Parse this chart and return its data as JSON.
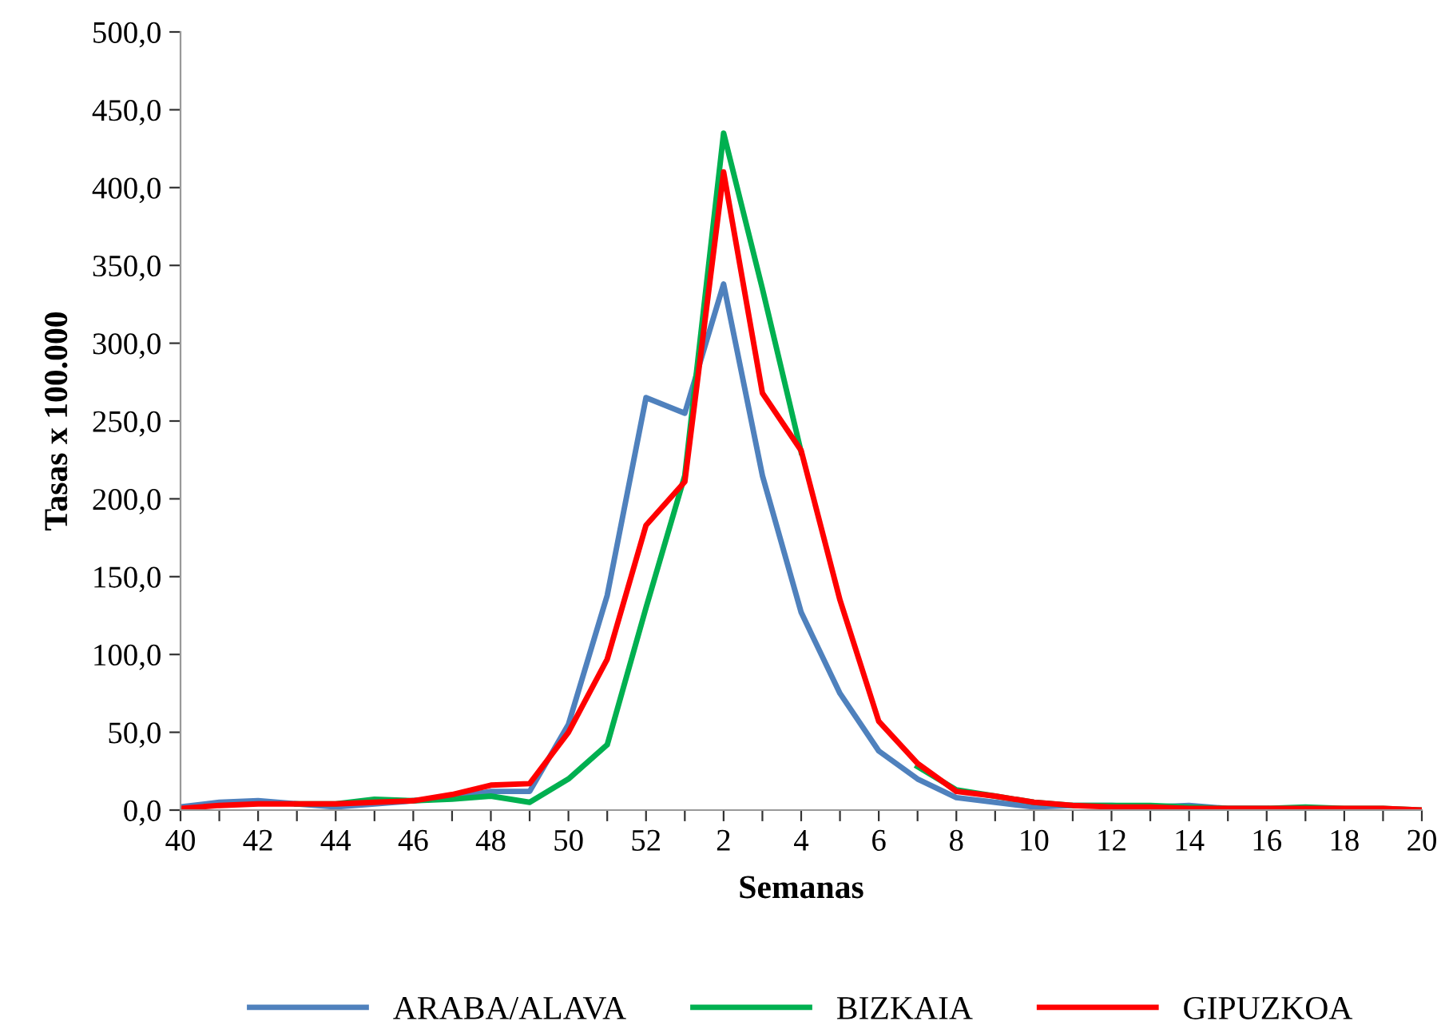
{
  "chart_data": {
    "type": "line",
    "xlabel": "Semanas",
    "ylabel": "Tasas x 100.000",
    "categories": [
      "40",
      null,
      "42",
      null,
      "44",
      null,
      "46",
      null,
      "48",
      null,
      "50",
      null,
      "52",
      null,
      "2",
      null,
      "4",
      null,
      "6",
      null,
      "8",
      null,
      "10",
      null,
      "12",
      null,
      "14",
      null,
      "16",
      null,
      "18",
      null,
      "20"
    ],
    "series": [
      {
        "name": "ARABA/ALAVA",
        "color": "#4f81bd",
        "values": [
          2,
          5,
          6,
          4,
          2,
          4,
          6,
          8,
          12,
          12,
          55,
          138,
          265,
          255,
          338,
          215,
          127,
          75,
          38,
          20,
          8,
          5,
          2,
          3,
          3,
          2,
          3,
          1,
          1,
          null,
          null,
          null,
          null
        ]
      },
      {
        "name": "BIZKAIA",
        "color": "#00b050",
        "values": [
          null,
          null,
          null,
          4,
          4,
          7,
          6,
          7,
          9,
          5,
          20,
          42,
          130,
          215,
          435,
          335,
          230,
          null,
          null,
          28,
          13,
          9,
          5,
          3,
          3,
          3,
          2,
          1,
          1,
          2,
          1,
          1,
          0
        ]
      },
      {
        "name": "GIPUZKOA",
        "color": "#ff0000",
        "values": [
          1,
          3,
          4,
          4,
          4,
          5,
          6,
          10,
          16,
          17,
          50,
          97,
          183,
          211,
          410,
          268,
          231,
          135,
          57,
          30,
          12,
          9,
          5,
          3,
          2,
          2,
          1,
          1,
          1,
          1,
          1,
          1,
          0
        ]
      }
    ],
    "ylim": [
      0,
      500
    ],
    "yticks": [
      {
        "value": 0,
        "label": "0,0"
      },
      {
        "value": 50,
        "label": "50,0"
      },
      {
        "value": 100,
        "label": "100,0"
      },
      {
        "value": 150,
        "label": "150,0"
      },
      {
        "value": 200,
        "label": "200,0"
      },
      {
        "value": 250,
        "label": "250,0"
      },
      {
        "value": 300,
        "label": "300,0"
      },
      {
        "value": 350,
        "label": "350,0"
      },
      {
        "value": 400,
        "label": "400,0"
      },
      {
        "value": 450,
        "label": "450,0"
      },
      {
        "value": 500,
        "label": "500,0"
      }
    ],
    "grid": false,
    "legend": "bottom",
    "marker": "none",
    "line_style": "solid"
  }
}
